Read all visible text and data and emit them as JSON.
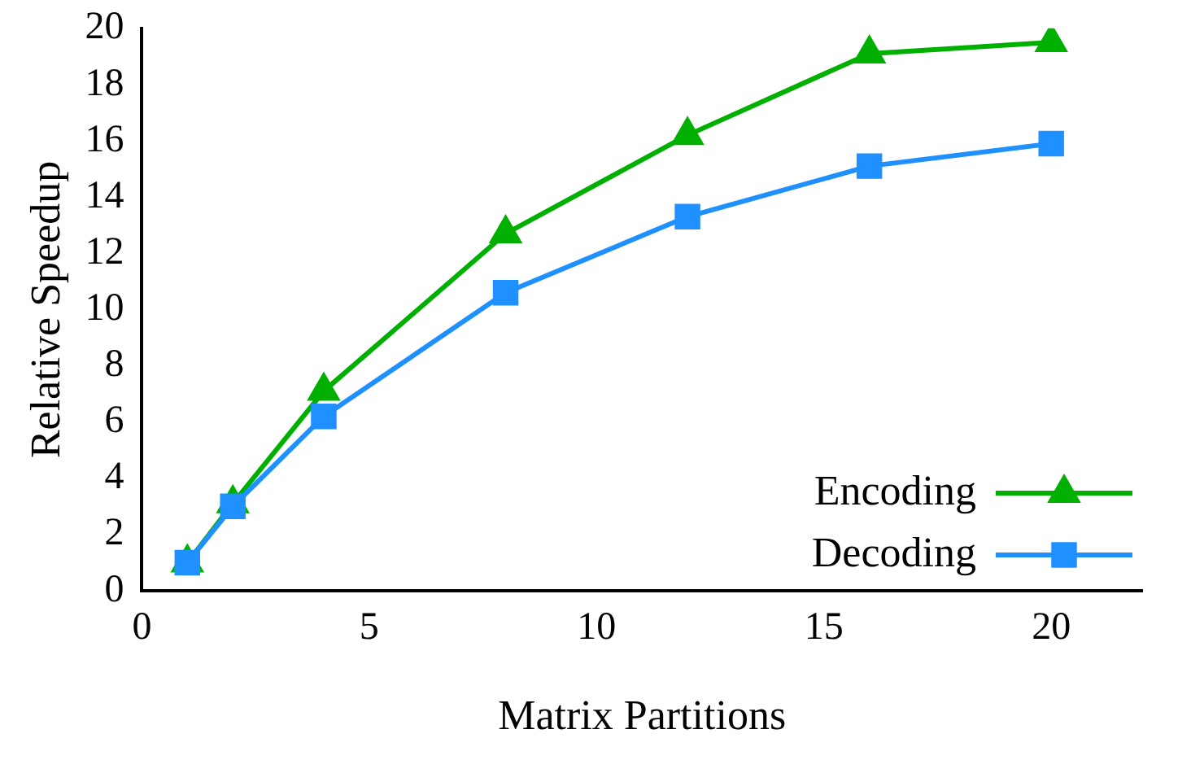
{
  "chart_data": {
    "type": "line",
    "xlabel": "Matrix Partitions",
    "ylabel": "Relative Speedup",
    "x": [
      1,
      2,
      4,
      8,
      12,
      16,
      20
    ],
    "series": [
      {
        "name": "Encoding",
        "color": "#00b000",
        "values": [
          1,
          3.1,
          7.1,
          12.7,
          16.2,
          19.1,
          19.5
        ],
        "marker": "triangle"
      },
      {
        "name": "Decoding",
        "color": "#1e90ff",
        "values": [
          1,
          3,
          6.2,
          10.6,
          13.3,
          15.1,
          15.9
        ],
        "marker": "square"
      }
    ],
    "xlim": [
      0,
      22
    ],
    "xticks": [
      0,
      5,
      10,
      15,
      20
    ],
    "ylim": [
      0,
      20
    ],
    "yticks": [
      0,
      2,
      4,
      6,
      8,
      10,
      12,
      14,
      16,
      18,
      20
    ],
    "grid": false,
    "legend": "bottom right",
    "line_style": "solid"
  }
}
